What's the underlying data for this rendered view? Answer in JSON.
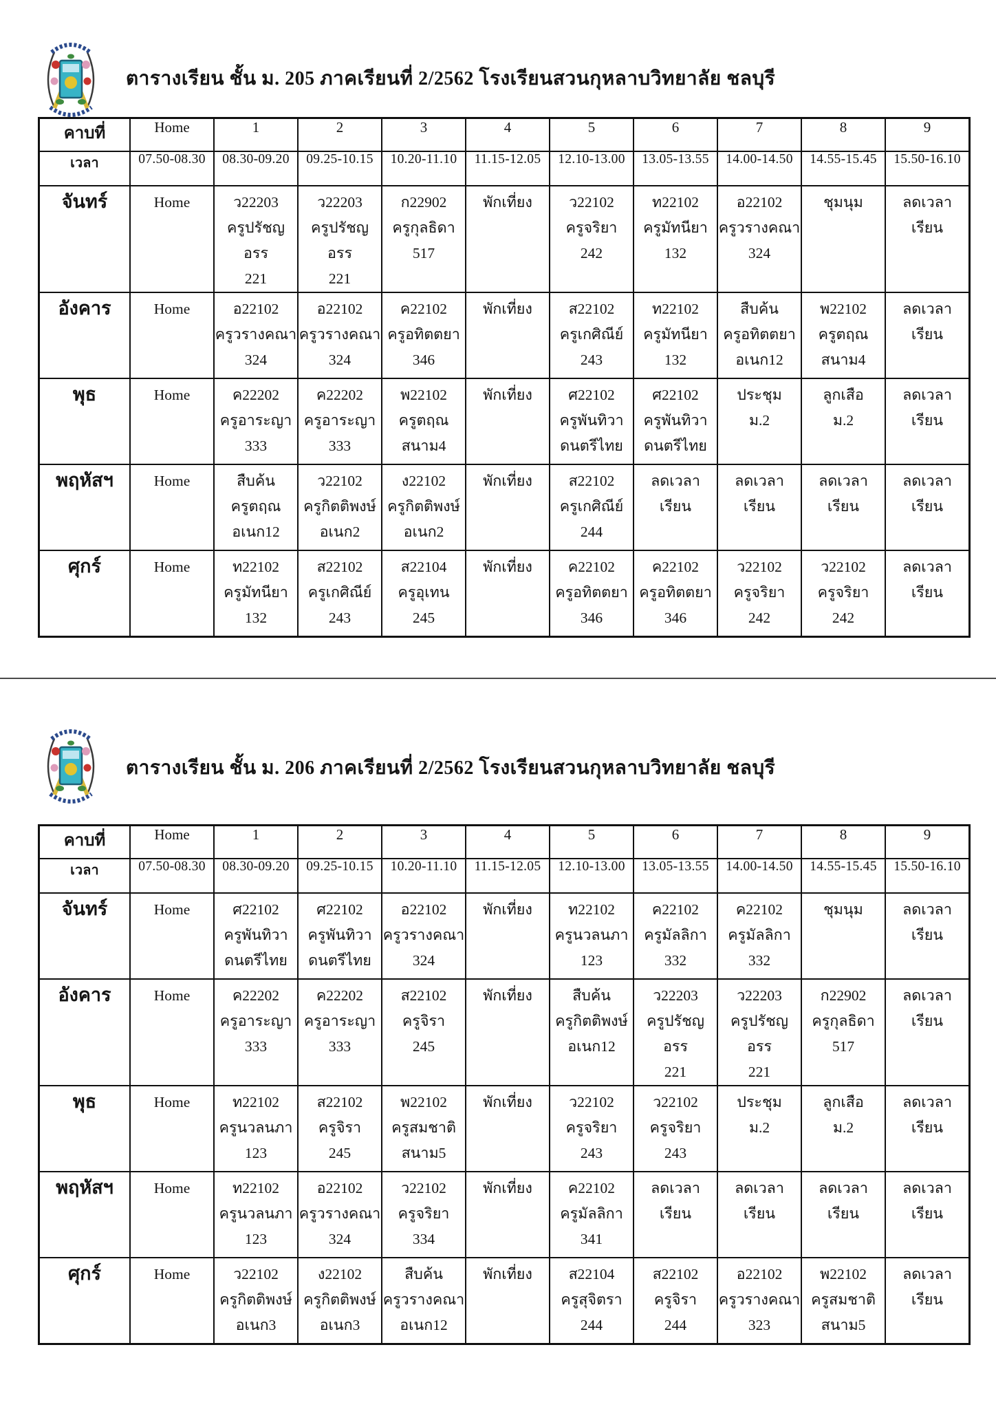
{
  "logo": {
    "name": "school-crest",
    "colors": {
      "frame": "#3a3a3a",
      "motto_text": "#2b4a8c",
      "banner_teal": "#38b4c6",
      "banner_border": "#1d5f77",
      "banner_inner": "#bfe6f0",
      "emblem_yellow": "#e3c42f",
      "flower_red": "#c8342e",
      "flower_pink": "#dd9cba",
      "leaf_green": "#3f8c3f",
      "pencil_yellow": "#d9b93a"
    }
  },
  "divider_present": true,
  "timetables": [
    {
      "title": "ตารางเรียน ชั้น ม. 205 ภาคเรียนที่ 2/2562 โรงเรียนสวนกุหลาบวิทยาลัย ชลบุรี",
      "period_header_label": "คาบที่",
      "time_header_label": "เวลา",
      "periods": [
        "Home",
        "1",
        "2",
        "3",
        "4",
        "5",
        "6",
        "7",
        "8",
        "9"
      ],
      "times": [
        "07.50-08.30",
        "08.30-09.20",
        "09.25-10.15",
        "10.20-11.10",
        "11.15-12.05",
        "12.10-13.00",
        "13.05-13.55",
        "14.00-14.50",
        "14.55-15.45",
        "15.50-16.10"
      ],
      "days": [
        {
          "name": "จันทร์",
          "cells": [
            [
              "Home"
            ],
            [
              "ว22203",
              "ครูปรัชญอรร",
              "221"
            ],
            [
              "ว22203",
              "ครูปรัชญอรร",
              "221"
            ],
            [
              "ก22902",
              "ครูกุลธิดา",
              "517"
            ],
            [
              "พักเที่ยง"
            ],
            [
              "ว22102",
              "ครูจริยา",
              "242"
            ],
            [
              "ท22102",
              "ครูมัทนียา",
              "132"
            ],
            [
              "อ22102",
              "ครูวรางคณา",
              "324"
            ],
            [
              "ชุมนุม"
            ],
            [
              "ลดเวลา",
              "เรียน"
            ]
          ]
        },
        {
          "name": "อังคาร",
          "cells": [
            [
              "Home"
            ],
            [
              "อ22102",
              "ครูวรางคณา",
              "324"
            ],
            [
              "อ22102",
              "ครูวรางคณา",
              "324"
            ],
            [
              "ค22102",
              "ครูอทิตตยา",
              "346"
            ],
            [
              "พักเที่ยง"
            ],
            [
              "ส22102",
              "ครูเกศิณีย์",
              "243"
            ],
            [
              "ท22102",
              "ครูมัทนียา",
              "132"
            ],
            [
              "สืบค้น",
              "ครูอทิตตยา",
              "อเนก12"
            ],
            [
              "พ22102",
              "ครูตฤณ",
              "สนาม4"
            ],
            [
              "ลดเวลา",
              "เรียน"
            ]
          ]
        },
        {
          "name": "พุธ",
          "cells": [
            [
              "Home"
            ],
            [
              "ค22202",
              "ครูอาระญา",
              "333"
            ],
            [
              "ค22202",
              "ครูอาระญา",
              "333"
            ],
            [
              "พ22102",
              "ครูตฤณ",
              "สนาม4"
            ],
            [
              "พักเที่ยง"
            ],
            [
              "ศ22102",
              "ครูพันทิวา",
              "ดนตรีไทย"
            ],
            [
              "ศ22102",
              "ครูพันทิวา",
              "ดนตรีไทย"
            ],
            [
              "ประชุม",
              "ม.2"
            ],
            [
              "ลูกเสือ",
              "ม.2"
            ],
            [
              "ลดเวลา",
              "เรียน"
            ]
          ]
        },
        {
          "name": "พฤหัสฯ",
          "cells": [
            [
              "Home"
            ],
            [
              "สืบค้น",
              "ครูตฤณ",
              "อเนก12"
            ],
            [
              "ว22102",
              "ครูกิตติพงษ์",
              "อเนก2"
            ],
            [
              "ง22102",
              "ครูกิตติพงษ์",
              "อเนก2"
            ],
            [
              "พักเที่ยง"
            ],
            [
              "ส22102",
              "ครูเกศิณีย์",
              "244"
            ],
            [
              "ลดเวลา",
              "เรียน"
            ],
            [
              "ลดเวลา",
              "เรียน"
            ],
            [
              "ลดเวลา",
              "เรียน"
            ],
            [
              "ลดเวลา",
              "เรียน"
            ]
          ]
        },
        {
          "name": "ศุกร์",
          "cells": [
            [
              "Home"
            ],
            [
              "ท22102",
              "ครูมัทนียา",
              "132"
            ],
            [
              "ส22102",
              "ครูเกศิณีย์",
              "243"
            ],
            [
              "ส22104",
              "ครูอุเทน",
              "245"
            ],
            [
              "พักเที่ยง"
            ],
            [
              "ค22102",
              "ครูอทิตตยา",
              "346"
            ],
            [
              "ค22102",
              "ครูอทิตตยา",
              "346"
            ],
            [
              "ว22102",
              "ครูจริยา",
              "242"
            ],
            [
              "ว22102",
              "ครูจริยา",
              "242"
            ],
            [
              "ลดเวลา",
              "เรียน"
            ]
          ]
        }
      ]
    },
    {
      "title": "ตารางเรียน ชั้น ม. 206 ภาคเรียนที่ 2/2562 โรงเรียนสวนกุหลาบวิทยาลัย ชลบุรี",
      "period_header_label": "คาบที่",
      "time_header_label": "เวลา",
      "periods": [
        "Home",
        "1",
        "2",
        "3",
        "4",
        "5",
        "6",
        "7",
        "8",
        "9"
      ],
      "times": [
        "07.50-08.30",
        "08.30-09.20",
        "09.25-10.15",
        "10.20-11.10",
        "11.15-12.05",
        "12.10-13.00",
        "13.05-13.55",
        "14.00-14.50",
        "14.55-15.45",
        "15.50-16.10"
      ],
      "days": [
        {
          "name": "จันทร์",
          "cells": [
            [
              "Home"
            ],
            [
              "ศ22102",
              "ครูพันทิวา",
              "ดนตรีไทย"
            ],
            [
              "ศ22102",
              "ครูพันทิวา",
              "ดนตรีไทย"
            ],
            [
              "อ22102",
              "ครูวรางคณา",
              "324"
            ],
            [
              "พักเที่ยง"
            ],
            [
              "ท22102",
              "ครูนวลนภา",
              "123"
            ],
            [
              "ค22102",
              "ครูมัลลิกา",
              "332"
            ],
            [
              "ค22102",
              "ครูมัลลิกา",
              "332"
            ],
            [
              "ชุมนุม"
            ],
            [
              "ลดเวลา",
              "เรียน"
            ]
          ]
        },
        {
          "name": "อังคาร",
          "cells": [
            [
              "Home"
            ],
            [
              "ค22202",
              "ครูอาระญา",
              "333"
            ],
            [
              "ค22202",
              "ครูอาระญา",
              "333"
            ],
            [
              "ส22102",
              "ครูจิรา",
              "245"
            ],
            [
              "พักเที่ยง"
            ],
            [
              "สืบค้น",
              "ครูกิตติพงษ์",
              "อเนก12"
            ],
            [
              "ว22203",
              "ครูปรัชญอรร",
              "221"
            ],
            [
              "ว22203",
              "ครูปรัชญอรร",
              "221"
            ],
            [
              "ก22902",
              "ครูกุลธิดา",
              "517"
            ],
            [
              "ลดเวลา",
              "เรียน"
            ]
          ]
        },
        {
          "name": "พุธ",
          "cells": [
            [
              "Home"
            ],
            [
              "ท22102",
              "ครูนวลนภา",
              "123"
            ],
            [
              "ส22102",
              "ครูจิรา",
              "245"
            ],
            [
              "พ22102",
              "ครูสมชาติ",
              "สนาม5"
            ],
            [
              "พักเที่ยง"
            ],
            [
              "ว22102",
              "ครูจริยา",
              "243"
            ],
            [
              "ว22102",
              "ครูจริยา",
              "243"
            ],
            [
              "ประชุม",
              "ม.2"
            ],
            [
              "ลูกเสือ",
              "ม.2"
            ],
            [
              "ลดเวลา",
              "เรียน"
            ]
          ]
        },
        {
          "name": "พฤหัสฯ",
          "cells": [
            [
              "Home"
            ],
            [
              "ท22102",
              "ครูนวลนภา",
              "123"
            ],
            [
              "อ22102",
              "ครูวรางคณา",
              "324"
            ],
            [
              "ว22102",
              "ครูจริยา",
              "334"
            ],
            [
              "พักเที่ยง"
            ],
            [
              "ค22102",
              "ครูมัลลิกา",
              "341"
            ],
            [
              "ลดเวลา",
              "เรียน"
            ],
            [
              "ลดเวลา",
              "เรียน"
            ],
            [
              "ลดเวลา",
              "เรียน"
            ],
            [
              "ลดเวลา",
              "เรียน"
            ]
          ]
        },
        {
          "name": "ศุกร์",
          "cells": [
            [
              "Home"
            ],
            [
              "ว22102",
              "ครูกิตติพงษ์",
              "อเนก3"
            ],
            [
              "ง22102",
              "ครูกิตติพงษ์",
              "อเนก3"
            ],
            [
              "สืบค้น",
              "ครูวรางคณา",
              "อเนก12"
            ],
            [
              "พักเที่ยง"
            ],
            [
              "ส22104",
              "ครูสุจิตรา",
              "244"
            ],
            [
              "ส22102",
              "ครูจิรา",
              "244"
            ],
            [
              "อ22102",
              "ครูวรางคณา",
              "323"
            ],
            [
              "พ22102",
              "ครูสมชาติ",
              "สนาม5"
            ],
            [
              "ลดเวลา",
              "เรียน"
            ]
          ]
        }
      ]
    }
  ]
}
